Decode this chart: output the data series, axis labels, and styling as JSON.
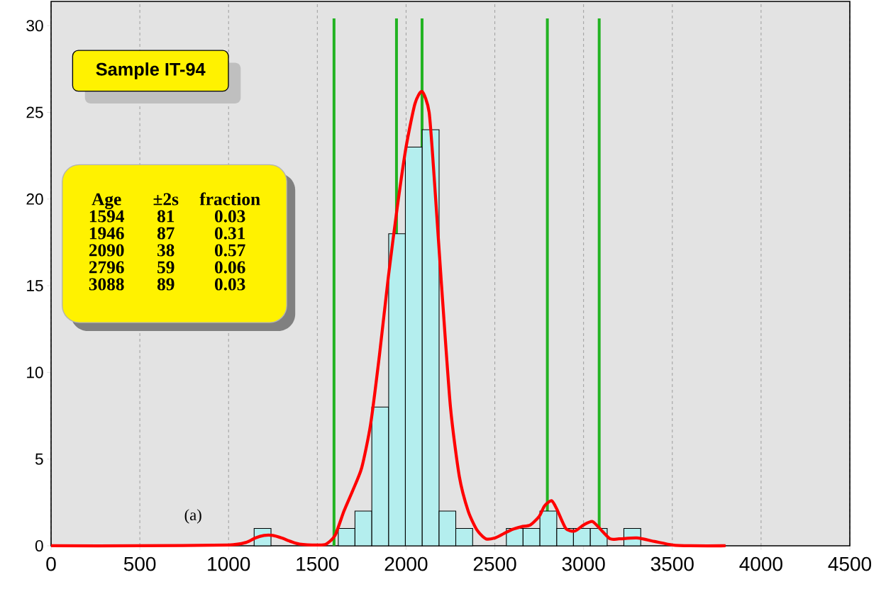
{
  "chart_data": {
    "type": "histogram",
    "series": [
      {
        "type": "histogram",
        "color": "#b4eeee",
        "bins": [
          1144,
          1239,
          1333,
          1428,
          1523,
          1618,
          1712,
          1807,
          1902,
          1996,
          2091,
          2186,
          2280,
          2375,
          2470,
          2565,
          2659,
          2754,
          2849,
          2943,
          3038,
          3133,
          3227,
          3322
        ],
        "values": [
          1,
          0,
          0,
          0,
          0,
          1,
          2,
          8,
          18,
          23,
          24,
          2,
          1,
          0,
          0,
          1,
          1,
          2,
          1,
          1,
          1,
          0,
          1
        ]
      },
      {
        "type": "line",
        "color": "#ff0000",
        "x": [
          0,
          500,
          1000,
          1100,
          1150,
          1200,
          1250,
          1300,
          1350,
          1400,
          1500,
          1550,
          1600,
          1650,
          1700,
          1750,
          1800,
          1850,
          1900,
          1950,
          2000,
          2050,
          2090,
          2130,
          2160,
          2200,
          2250,
          2300,
          2350,
          2400,
          2450,
          2500,
          2550,
          2600,
          2650,
          2700,
          2750,
          2780,
          2820,
          2850,
          2900,
          2950,
          3000,
          3050,
          3100,
          3150,
          3200,
          3300,
          3400,
          3500,
          3600,
          3800
        ],
        "values": [
          0,
          0,
          0.05,
          0.2,
          0.45,
          0.6,
          0.6,
          0.45,
          0.25,
          0.1,
          0.05,
          0.1,
          0.6,
          2.0,
          3.2,
          4.5,
          7,
          11,
          15.5,
          19.5,
          23,
          25.5,
          26.2,
          25,
          21,
          15,
          8,
          4,
          2,
          0.9,
          0.4,
          0.45,
          0.7,
          0.95,
          1.1,
          1.2,
          1.7,
          2.3,
          2.6,
          2.1,
          1.0,
          0.85,
          1.2,
          1.4,
          0.9,
          0.4,
          0.4,
          0.45,
          0.25,
          0.05,
          0,
          0
        ]
      }
    ],
    "ref_lines": [
      {
        "axis": "x",
        "value": 1594,
        "color": "#22b322"
      },
      {
        "axis": "x",
        "value": 1946,
        "color": "#22b322"
      },
      {
        "axis": "x",
        "value": 2090,
        "color": "#22b322"
      },
      {
        "axis": "x",
        "value": 2796,
        "color": "#22b322"
      },
      {
        "axis": "x",
        "value": 3088,
        "color": "#22b322"
      }
    ],
    "annotations": [
      "Sample IT-94",
      "(a)",
      "Age",
      "±2s",
      "fraction",
      "1594",
      "81",
      "0.03",
      "1946",
      "87",
      "0.31",
      "2090",
      "38",
      "0.57",
      "2796",
      "59",
      "0.06",
      "3088",
      "89",
      "0.03"
    ],
    "xlim": [
      0,
      4500
    ],
    "ylim": [
      0,
      31.4
    ],
    "xticks": [
      0,
      500,
      1000,
      1500,
      2000,
      2500,
      3000,
      3500,
      4000,
      4500
    ],
    "yticks": [
      0,
      5,
      10,
      15,
      20,
      25,
      30
    ],
    "grid": "x"
  }
}
